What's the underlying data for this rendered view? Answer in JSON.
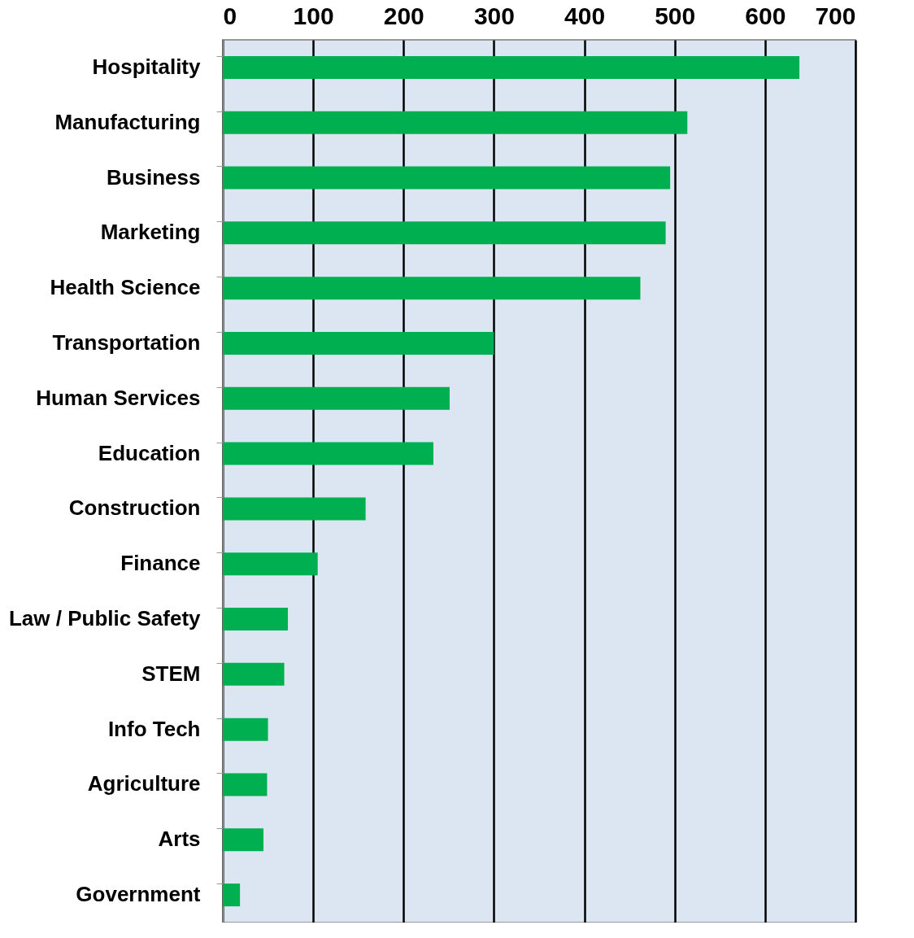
{
  "chart_data": {
    "type": "bar",
    "orientation": "horizontal",
    "categories": [
      "Hospitality",
      "Manufacturing",
      "Business",
      "Marketing",
      "Health Science",
      "Transportation",
      "Human Services",
      "Education",
      "Construction",
      "Finance",
      "Law / Public Safety",
      "STEM",
      "Info Tech",
      "Agriculture",
      "Arts",
      "Government"
    ],
    "values": [
      638,
      514,
      495,
      490,
      462,
      300,
      251,
      233,
      158,
      105,
      72,
      68,
      50,
      49,
      45,
      19
    ],
    "color": "#00b050",
    "xlim": [
      0,
      700
    ],
    "xticks": [
      0,
      100,
      200,
      300,
      400,
      500,
      600,
      700
    ],
    "grid": "x"
  }
}
